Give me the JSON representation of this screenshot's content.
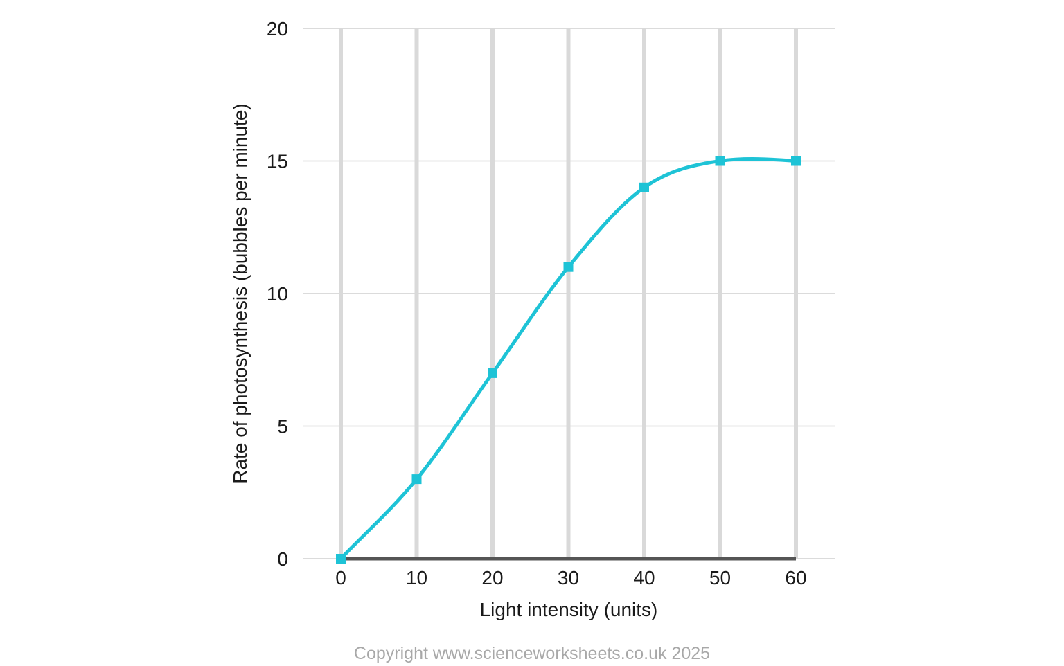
{
  "chart_data": {
    "type": "line",
    "x": [
      0,
      10,
      20,
      30,
      40,
      50,
      60
    ],
    "series": [
      {
        "values": [
          0,
          3,
          7,
          11,
          14,
          15,
          15
        ]
      }
    ],
    "xlabel": "Light intensity (units)",
    "ylabel": "Rate of photosynthesis (bubbles per minute)",
    "xticks": [
      "0",
      "10",
      "20",
      "30",
      "40",
      "50",
      "60"
    ],
    "yticks": [
      "0",
      "5",
      "10",
      "15",
      "20"
    ],
    "xlim": [
      0,
      60
    ],
    "ylim": [
      0,
      20
    ],
    "grid": true,
    "smooth": true,
    "marker": "square",
    "colors": {
      "line": "#1ec3d6",
      "grid_vertical": "#d9d9d9",
      "grid_horizontal": "#cfcfcf",
      "baseline": "#555555"
    }
  },
  "footer": {
    "copyright": "Copyright www.scienceworksheets.co.uk 2025"
  }
}
